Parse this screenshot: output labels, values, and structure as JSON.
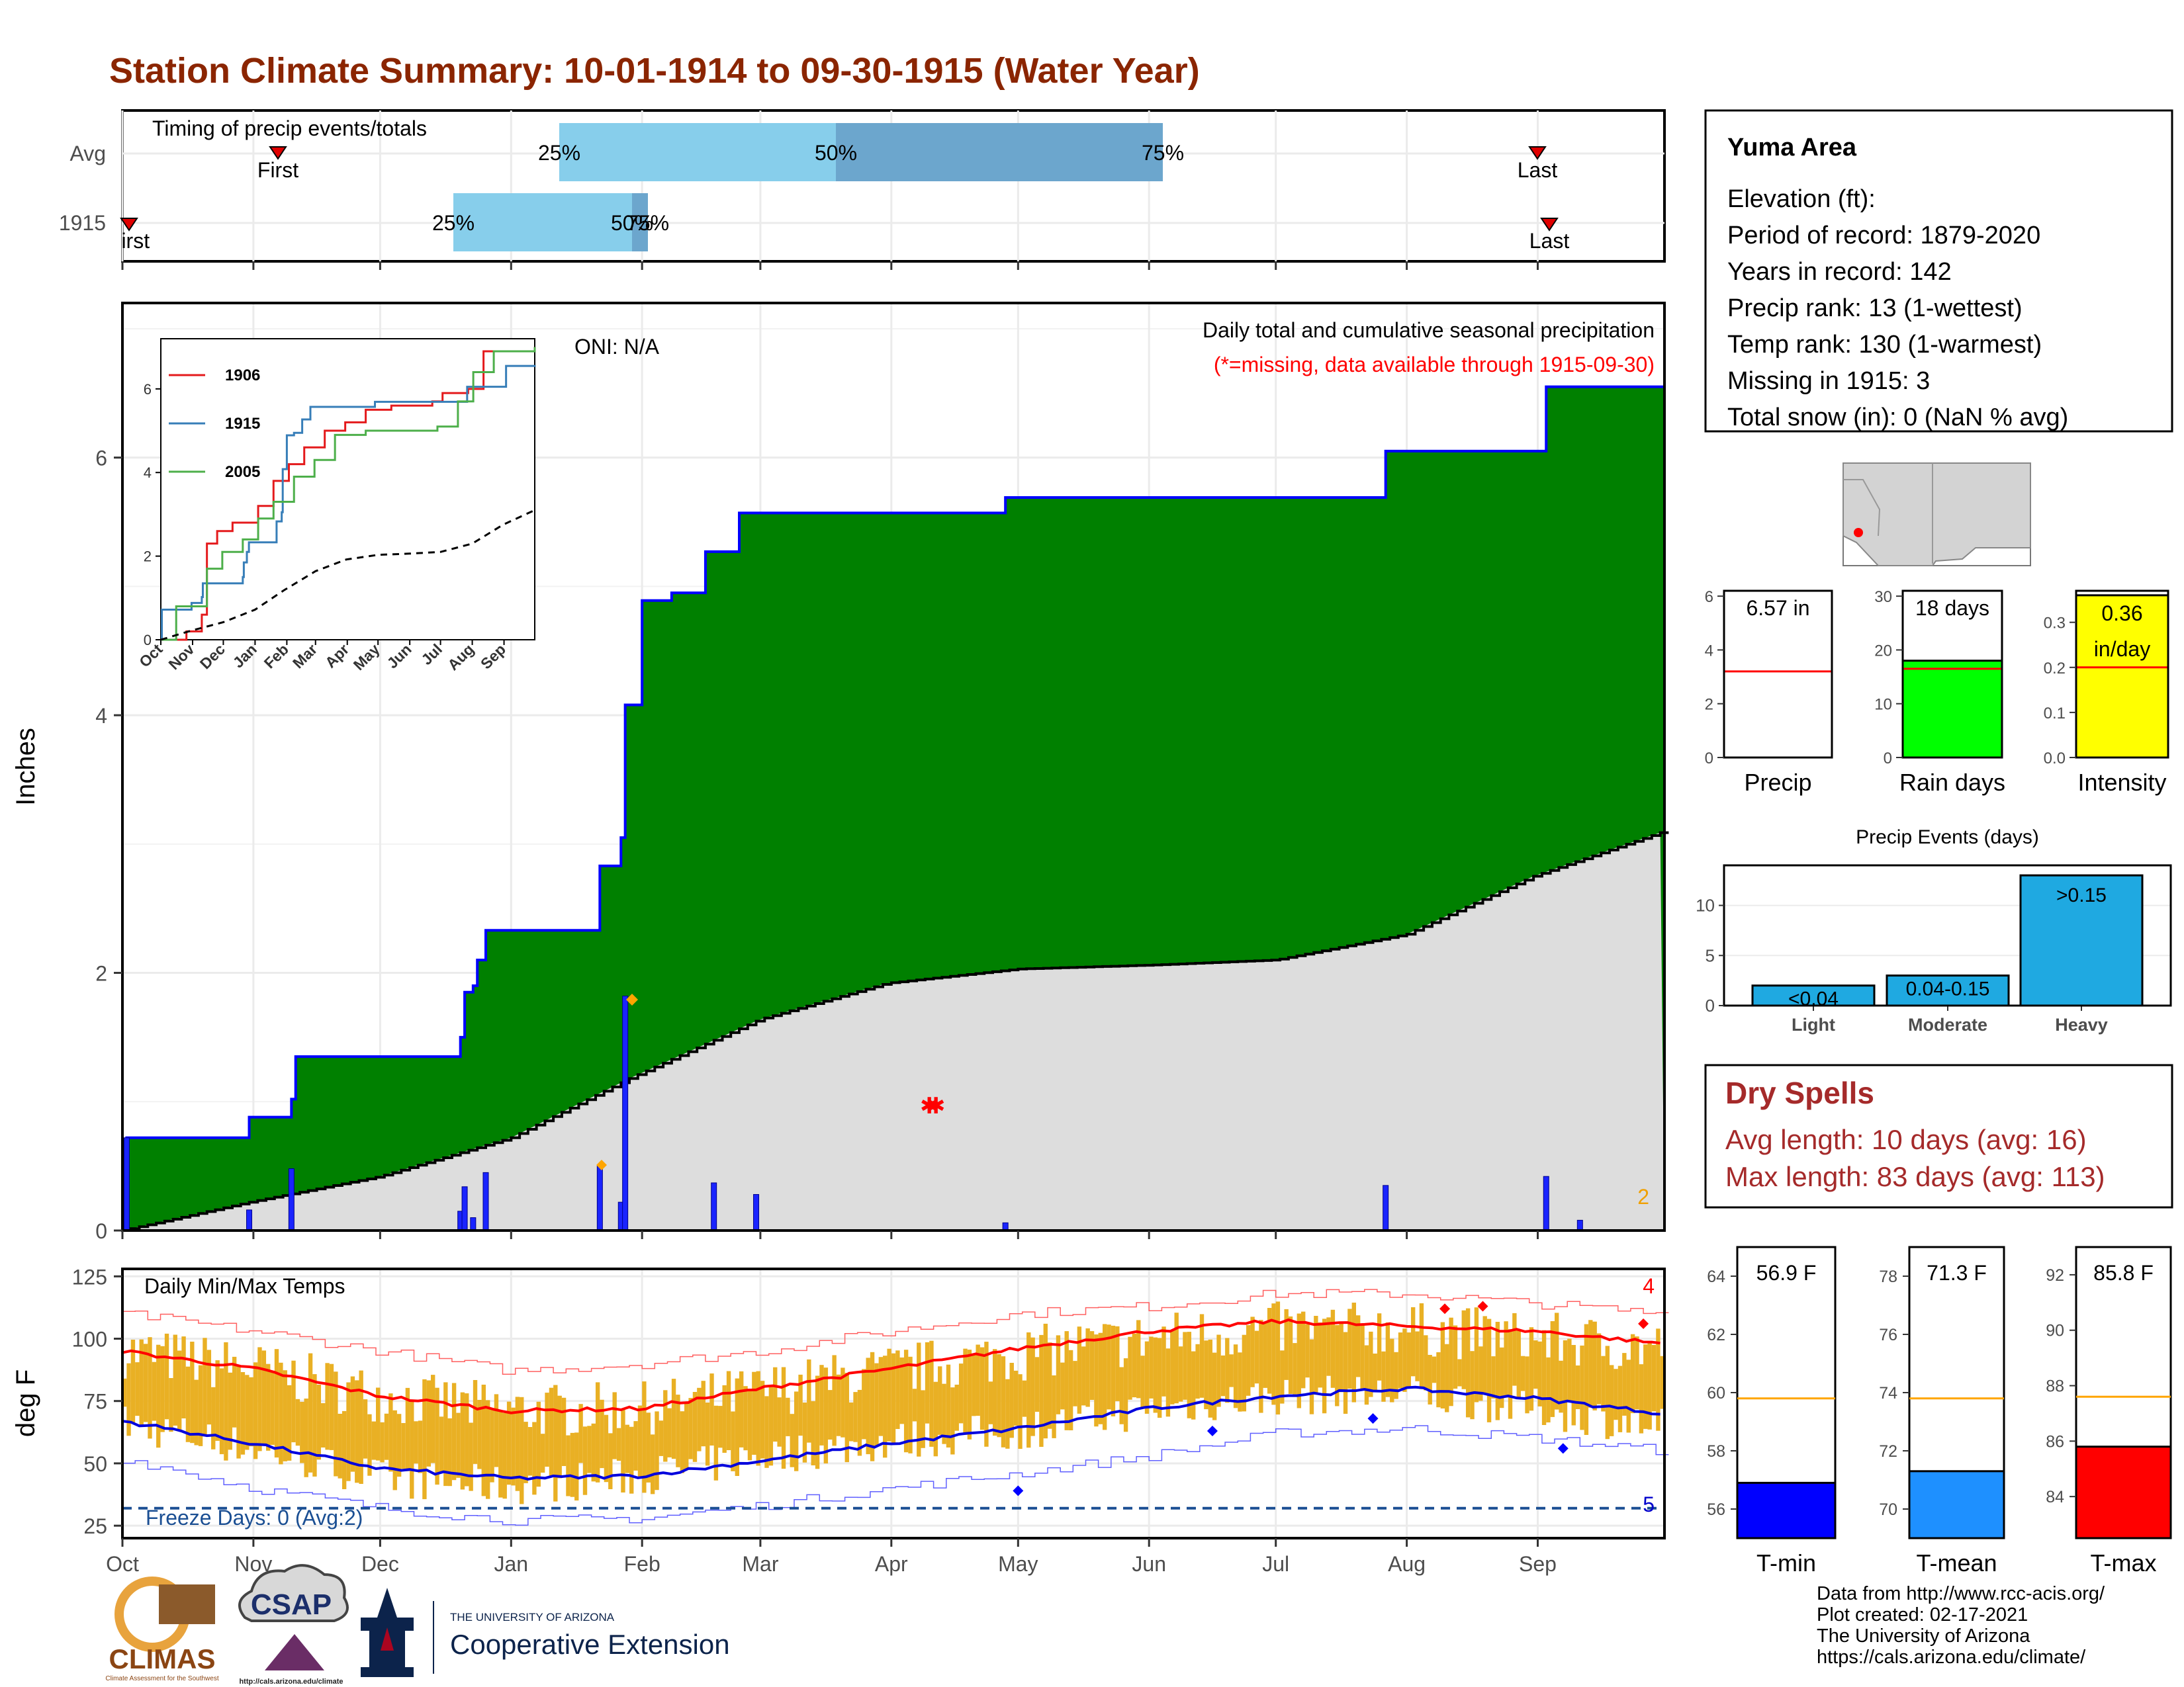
{
  "title": "Station Climate Summary: 10-01-1914 to 09-30-1915 (Water Year)",
  "colors": {
    "title": "#8B2500",
    "green": "#008000",
    "blue_line": "#0000ff",
    "avg_fill": "#dddddd",
    "light_blue": "#87CEEB",
    "steel_blue": "#6CA6CD",
    "red": "#ff0000",
    "orange": "#FFA500",
    "tmin": "#0000ff",
    "tmean": "#1E90FF",
    "tmax": "#ff0000",
    "rain_days": "#00ff00",
    "intensity": "#ffff00",
    "events": "#1FA9E1",
    "temp_bar": "#E9B024",
    "dry": "#A52A2A"
  },
  "timing_panel": {
    "title": "Timing of precip events/totals",
    "rows": [
      "Avg",
      "1915"
    ],
    "avg": {
      "first_label": "First",
      "last_label": "Last",
      "p25": "25%",
      "p50": "50%",
      "p75": "75%"
    },
    "y1915": {
      "first_label": "First",
      "last_label": "Last",
      "p25": "25%",
      "p50": "50%",
      "p75": "75%"
    }
  },
  "precip_panel": {
    "ylabel": "Inches",
    "oni": "ONI: N/A",
    "header": "Daily total and cumulative seasonal precipitation",
    "missing_note": "(*=missing, data available through 1915-09-30)",
    "corner_count": "2",
    "yticks": [
      "0",
      "2",
      "4",
      "6"
    ]
  },
  "inset": {
    "legend": [
      "1906",
      "1915",
      "2005"
    ],
    "yticks": [
      "0",
      "2",
      "4",
      "6"
    ],
    "months": [
      "Oct",
      "Nov",
      "Dec",
      "Jan",
      "Feb",
      "Mar",
      "Apr",
      "May",
      "Jun",
      "Jul",
      "Aug",
      "Sep"
    ]
  },
  "temp_panel": {
    "ylabel": "deg F",
    "title": "Daily Min/Max Temps",
    "freeze": "Freeze Days: 0 (Avg:2)",
    "hot_count": "4",
    "cold_count": "5",
    "yticks": [
      "25",
      "50",
      "75",
      "100",
      "125"
    ]
  },
  "months": [
    "Oct",
    "Nov",
    "Dec",
    "Jan",
    "Feb",
    "Mar",
    "Apr",
    "May",
    "Jun",
    "Jul",
    "Aug",
    "Sep"
  ],
  "info": {
    "station": "Yuma Area",
    "lines": [
      "Elevation (ft):",
      "Period of record: 1879-2020",
      "Years in record: 142",
      "Precip rank: 13 (1-wettest)",
      "Temp rank: 130 (1-warmest)",
      "Missing in 1915: 3",
      "Total snow (in): 0 (NaN % avg)"
    ]
  },
  "summary_bars": [
    {
      "label": "Precip",
      "value_text": "6.57 in",
      "value": 6.57,
      "avg": 3.2,
      "ymax": 6.2,
      "ticks": [
        "0",
        "2",
        "4",
        "6"
      ]
    },
    {
      "label": "Rain days",
      "value_text": "18 days",
      "value": 18,
      "avg": 16.5,
      "ymax": 31,
      "ticks": [
        "0",
        "10",
        "20",
        "30"
      ]
    },
    {
      "label": "Intensity",
      "value_text": "0.36 in/day",
      "value_line1": "0.36",
      "value_line2": "in/day",
      "value": 0.36,
      "avg": 0.2,
      "ymax": 0.37,
      "ticks": [
        "0.0",
        "0.1",
        "0.2",
        "0.3"
      ]
    }
  ],
  "events": {
    "title": "Precip Events (days)",
    "categories": [
      "Light",
      "Moderate",
      "Heavy"
    ],
    "bar_labels": [
      "<0.04",
      "0.04-0.15",
      ">0.15"
    ],
    "values": [
      2,
      3,
      13
    ],
    "ticks": [
      "0",
      "5",
      "10"
    ]
  },
  "dry_spells": {
    "title": "Dry Spells",
    "avg_line": "Avg length: 10 days (avg: 16)",
    "max_line": "Max length: 83 days (avg: 113)"
  },
  "temp_bars": [
    {
      "label": "T-min",
      "value_text": "56.9 F",
      "value": 56.9,
      "avg": 59.8,
      "ymin": 55,
      "ymax": 65,
      "ticks": [
        "56",
        "58",
        "60",
        "62",
        "64"
      ]
    },
    {
      "label": "T-mean",
      "value_text": "71.3 F",
      "value": 71.3,
      "avg": 73.8,
      "ymin": 69,
      "ymax": 79,
      "ticks": [
        "70",
        "72",
        "74",
        "76",
        "78"
      ]
    },
    {
      "label": "T-max",
      "value_text": "85.8 F",
      "value": 85.8,
      "avg": 87.6,
      "ymin": 82.5,
      "ymax": 93,
      "ticks": [
        "84",
        "86",
        "88",
        "90",
        "92"
      ]
    }
  ],
  "footer": {
    "lines": [
      "Data from http://www.rcc-acis.org/",
      "Plot created: 02-17-2021",
      "The University of Arizona",
      "https://cals.arizona.edu/climate/"
    ]
  },
  "logos": {
    "climas": "CLIMAS",
    "climas_small": "Climate Assessment for the Southwest",
    "csap": "CSAP",
    "csap_url": "http://cals.arizona.edu/climate",
    "ua_small": "THE UNIVERSITY OF ARIZONA",
    "ua_big": "Cooperative Extension"
  },
  "chart_data": [
    {
      "type": "area",
      "title": "Daily total and cumulative seasonal precipitation",
      "ylabel": "Inches",
      "ylim": [
        0,
        7.2
      ],
      "x_axis": "day of water year (Oct 1 = 0)",
      "cumulative_steps": [
        [
          0,
          0
        ],
        [
          1,
          0.72
        ],
        [
          30,
          0.88
        ],
        [
          40,
          1.02
        ],
        [
          41,
          1.35
        ],
        [
          80,
          1.5
        ],
        [
          81,
          1.85
        ],
        [
          83,
          1.9
        ],
        [
          84,
          2.1
        ],
        [
          86,
          2.33
        ],
        [
          113,
          2.83
        ],
        [
          118,
          3.05
        ],
        [
          119,
          4.08
        ],
        [
          123,
          4.89
        ],
        [
          130,
          4.95
        ],
        [
          138,
          5.27
        ],
        [
          146,
          5.57
        ],
        [
          209,
          5.69
        ],
        [
          299,
          6.05
        ],
        [
          337,
          6.55
        ],
        [
          365,
          6.57
        ]
      ],
      "average_cumulative": [
        [
          0,
          0
        ],
        [
          30,
          0.22
        ],
        [
          61,
          0.42
        ],
        [
          92,
          0.72
        ],
        [
          120,
          1.18
        ],
        [
          151,
          1.64
        ],
        [
          181,
          1.92
        ],
        [
          212,
          2.03
        ],
        [
          243,
          2.06
        ],
        [
          273,
          2.1
        ],
        [
          304,
          2.3
        ],
        [
          334,
          2.75
        ],
        [
          365,
          3.1
        ]
      ],
      "daily_bars": [
        [
          1,
          0.72
        ],
        [
          30,
          0.16
        ],
        [
          40,
          0.48
        ],
        [
          80,
          0.15
        ],
        [
          81,
          0.34
        ],
        [
          83,
          0.1
        ],
        [
          86,
          0.45
        ],
        [
          113,
          0.5
        ],
        [
          118,
          0.22
        ],
        [
          119,
          1.82
        ],
        [
          140,
          0.37
        ],
        [
          150,
          0.28
        ],
        [
          209,
          0.06
        ],
        [
          299,
          0.35
        ],
        [
          337,
          0.42
        ],
        [
          345,
          0.08
        ]
      ],
      "missing_day": 191
    },
    {
      "type": "line",
      "title": "Cumulative precipitation comparison (inset)",
      "ylim": [
        0,
        7.2
      ],
      "series": [
        {
          "name": "1906",
          "points": [
            [
              0,
              0
            ],
            [
              25,
              0.2
            ],
            [
              40,
              0.6
            ],
            [
              45,
              2.3
            ],
            [
              55,
              2.6
            ],
            [
              70,
              2.8
            ],
            [
              95,
              3.2
            ],
            [
              110,
              3.8
            ],
            [
              125,
              4.2
            ],
            [
              140,
              4.6
            ],
            [
              160,
              5.0
            ],
            [
              180,
              5.2
            ],
            [
              200,
              5.5
            ],
            [
              225,
              5.6
            ],
            [
              265,
              5.7
            ],
            [
              275,
              5.9
            ],
            [
              300,
              6.0
            ],
            [
              315,
              6.9
            ],
            [
              365,
              7.0
            ]
          ]
        },
        {
          "name": "1915",
          "points": [
            [
              0,
              0
            ],
            [
              1,
              0.72
            ],
            [
              30,
              0.88
            ],
            [
              40,
              1.02
            ],
            [
              41,
              1.35
            ],
            [
              80,
              1.5
            ],
            [
              81,
              1.85
            ],
            [
              84,
              2.1
            ],
            [
              86,
              2.33
            ],
            [
              113,
              2.83
            ],
            [
              118,
              3.05
            ],
            [
              119,
              4.08
            ],
            [
              123,
              4.89
            ],
            [
              130,
              4.95
            ],
            [
              138,
              5.27
            ],
            [
              146,
              5.57
            ],
            [
              209,
              5.69
            ],
            [
              299,
              6.05
            ],
            [
              337,
              6.55
            ],
            [
              365,
              6.57
            ]
          ]
        },
        {
          "name": "2005",
          "points": [
            [
              0,
              0
            ],
            [
              15,
              0.8
            ],
            [
              45,
              1.7
            ],
            [
              60,
              2.1
            ],
            [
              80,
              2.4
            ],
            [
              95,
              2.9
            ],
            [
              110,
              3.3
            ],
            [
              130,
              3.9
            ],
            [
              150,
              4.3
            ],
            [
              170,
              4.9
            ],
            [
              200,
              5.0
            ],
            [
              240,
              5.0
            ],
            [
              270,
              5.1
            ],
            [
              290,
              5.7
            ],
            [
              305,
              6.4
            ],
            [
              325,
              6.9
            ],
            [
              365,
              7.0
            ]
          ]
        },
        {
          "name": "average",
          "points": [
            [
              0,
              0
            ],
            [
              30,
              0.22
            ],
            [
              61,
              0.42
            ],
            [
              92,
              0.72
            ],
            [
              120,
              1.18
            ],
            [
              151,
              1.64
            ],
            [
              181,
              1.92
            ],
            [
              212,
              2.03
            ],
            [
              243,
              2.06
            ],
            [
              273,
              2.1
            ],
            [
              304,
              2.3
            ],
            [
              334,
              2.75
            ],
            [
              365,
              3.1
            ]
          ]
        }
      ]
    },
    {
      "type": "bar",
      "title": "Daily Min/Max Temps",
      "ylabel": "deg F",
      "ylim": [
        20,
        128
      ],
      "normals": {
        "avg_max": [
          [
            0,
            95
          ],
          [
            31,
            88
          ],
          [
            61,
            77
          ],
          [
            92,
            71
          ],
          [
            123,
            72
          ],
          [
            151,
            80
          ],
          [
            182,
            88
          ],
          [
            212,
            96
          ],
          [
            243,
            103
          ],
          [
            273,
            107
          ],
          [
            304,
            105
          ],
          [
            335,
            103
          ],
          [
            365,
            98
          ]
        ],
        "avg_min": [
          [
            0,
            67
          ],
          [
            31,
            58
          ],
          [
            61,
            48
          ],
          [
            92,
            44
          ],
          [
            123,
            45
          ],
          [
            151,
            51
          ],
          [
            182,
            58
          ],
          [
            212,
            64
          ],
          [
            243,
            72
          ],
          [
            273,
            77
          ],
          [
            304,
            80
          ],
          [
            335,
            76
          ],
          [
            365,
            70
          ]
        ],
        "record_max": [
          [
            0,
            110
          ],
          [
            31,
            103
          ],
          [
            61,
            95
          ],
          [
            92,
            87
          ],
          [
            123,
            90
          ],
          [
            151,
            95
          ],
          [
            182,
            103
          ],
          [
            212,
            110
          ],
          [
            243,
            113
          ],
          [
            273,
            118
          ],
          [
            304,
            118
          ],
          [
            335,
            114
          ],
          [
            365,
            110
          ]
        ],
        "record_min": [
          [
            0,
            52
          ],
          [
            31,
            40
          ],
          [
            61,
            32
          ],
          [
            92,
            27
          ],
          [
            123,
            28
          ],
          [
            151,
            33
          ],
          [
            182,
            40
          ],
          [
            212,
            46
          ],
          [
            243,
            53
          ],
          [
            273,
            62
          ],
          [
            304,
            64
          ],
          [
            335,
            60
          ],
          [
            365,
            55
          ]
        ]
      },
      "freeze_line": 32,
      "daily_profile_max": [
        [
          0,
          95
        ],
        [
          31,
          88
        ],
        [
          61,
          77
        ],
        [
          92,
          71
        ],
        [
          123,
          72
        ],
        [
          151,
          79
        ],
        [
          182,
          87
        ],
        [
          212,
          94
        ],
        [
          243,
          100
        ],
        [
          273,
          104
        ],
        [
          304,
          104
        ],
        [
          335,
          100
        ],
        [
          365,
          96
        ]
      ],
      "daily_profile_min": [
        [
          0,
          66
        ],
        [
          31,
          56
        ],
        [
          61,
          44
        ],
        [
          92,
          41
        ],
        [
          123,
          45
        ],
        [
          151,
          53
        ],
        [
          182,
          59
        ],
        [
          212,
          63
        ],
        [
          243,
          72
        ],
        [
          273,
          77
        ],
        [
          304,
          78
        ],
        [
          335,
          72
        ],
        [
          365,
          64
        ]
      ],
      "record_highs": [
        [
          313,
          112
        ],
        [
          322,
          113
        ],
        [
          360,
          106
        ]
      ],
      "record_lows": [
        [
          212,
          39
        ],
        [
          258,
          63
        ],
        [
          296,
          68
        ],
        [
          341,
          56
        ]
      ]
    }
  ]
}
